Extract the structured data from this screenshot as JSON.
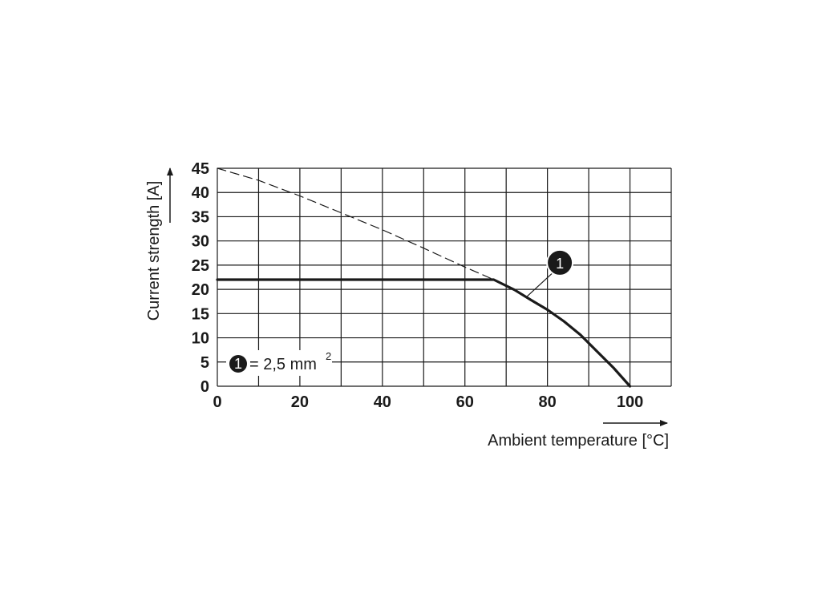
{
  "chart_data": {
    "type": "line",
    "title": "",
    "xlabel": "Ambient temperature [°C]",
    "ylabel": "Current strength [A]",
    "xlim": [
      0,
      110
    ],
    "ylim": [
      0,
      45
    ],
    "x_major_ticks": [
      0,
      20,
      40,
      60,
      80,
      100
    ],
    "x_grid_step": 10,
    "y_ticks": [
      0,
      5,
      10,
      15,
      20,
      25,
      30,
      35,
      40,
      45
    ],
    "grid": true,
    "series": [
      {
        "id": "derating",
        "style": "solid",
        "x": [
          0,
          67,
          72,
          76,
          80,
          84,
          88,
          92,
          96,
          100
        ],
        "y": [
          22,
          22,
          19.9,
          17.8,
          15.8,
          13.4,
          10.6,
          7.2,
          3.8,
          0
        ]
      },
      {
        "id": "base",
        "style": "dashed",
        "x": [
          0,
          10,
          20,
          30,
          40,
          50,
          60,
          67
        ],
        "y": [
          45,
          42.5,
          39.3,
          35.8,
          32.3,
          28.5,
          24.6,
          22
        ]
      }
    ],
    "markers": [
      {
        "label": "1",
        "target_x": 75,
        "target_y": 18.5,
        "anchor_x": 83,
        "anchor_y": 25.5
      }
    ],
    "legend": {
      "marker": "1",
      "text": "= 2,5 mm",
      "superscript": "2",
      "position": "bottom-left"
    }
  }
}
